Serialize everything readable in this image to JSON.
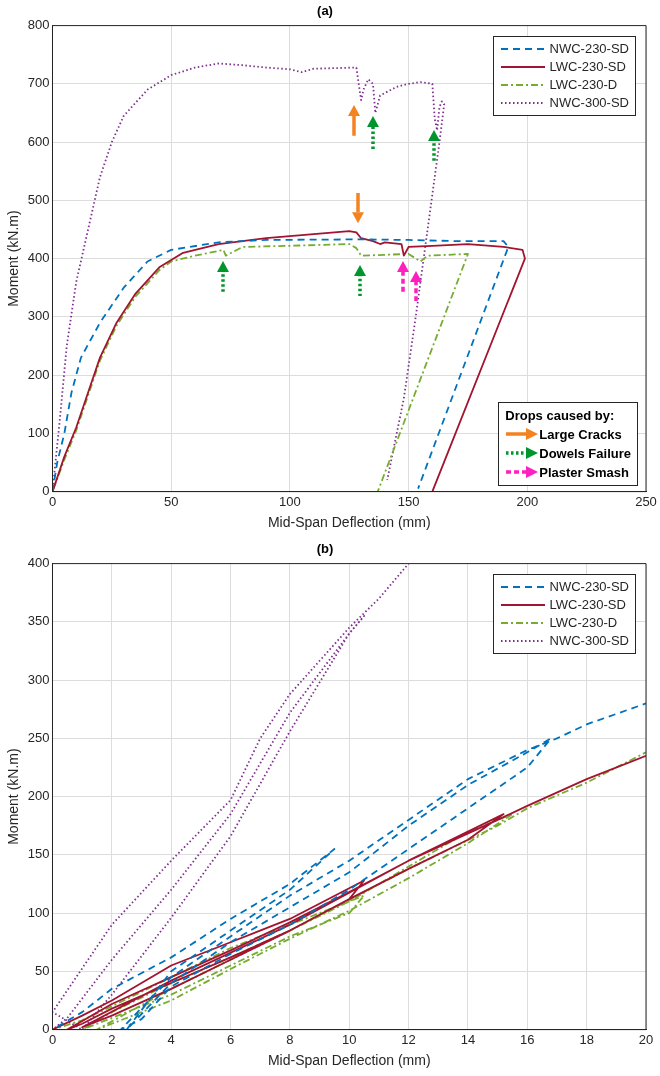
{
  "chart_data": [
    {
      "type": "line",
      "title": "(a)",
      "xlabel": "Mid-Span Deflection (mm)",
      "ylabel": "Moment (kN.m)",
      "xlim": [
        0,
        250
      ],
      "xticks": [
        0,
        50,
        100,
        150,
        200,
        250
      ],
      "ylim": [
        0,
        800
      ],
      "yticks": [
        0,
        100,
        200,
        300,
        400,
        500,
        600,
        700,
        800
      ],
      "grid": true,
      "legend": "top right",
      "annotations": [
        "Drops caused by:",
        "Large Cracks",
        "Dowels Failure",
        "Plaster Smash"
      ],
      "series": [
        {
          "name": "NWC-230-SD",
          "color": "#0072bd",
          "line_style": "dashed",
          "x": [
            0,
            2,
            5,
            8,
            12,
            20,
            30,
            40,
            50,
            70,
            90,
            130,
            150,
            170,
            190,
            192,
            154
          ],
          "values": [
            0,
            50,
            100,
            170,
            230,
            290,
            350,
            395,
            415,
            428,
            432,
            433,
            432,
            430,
            430,
            420,
            5
          ]
        },
        {
          "name": "LWC-230-SD",
          "color": "#a2142f",
          "line_style": "solid",
          "x": [
            0,
            5,
            10,
            15,
            20,
            27,
            35,
            45,
            55,
            70,
            90,
            110,
            125,
            128,
            130,
            135,
            138,
            140,
            147,
            148,
            150,
            160,
            175,
            190,
            198,
            199,
            160
          ],
          "values": [
            0,
            60,
            110,
            170,
            230,
            290,
            340,
            385,
            410,
            425,
            435,
            442,
            447,
            445,
            435,
            430,
            425,
            428,
            425,
            405,
            420,
            422,
            425,
            420,
            415,
            400,
            0
          ]
        },
        {
          "name": "LWC-230-D",
          "color": "#77ac30",
          "line_style": "dashdot",
          "x": [
            0,
            5,
            10,
            15,
            20,
            27,
            35,
            45,
            50,
            60,
            72,
            73,
            80,
            100,
            125,
            128,
            130,
            150,
            155,
            158,
            175,
            137
          ],
          "values": [
            0,
            55,
            105,
            165,
            225,
            285,
            335,
            380,
            395,
            405,
            415,
            405,
            420,
            422,
            425,
            418,
            405,
            408,
            395,
            405,
            408,
            0
          ]
        },
        {
          "name": "NWC-300-SD",
          "color": "#7e2f8e",
          "line_style": "dotted",
          "x": [
            0,
            3,
            6,
            10,
            15,
            20,
            25,
            30,
            40,
            50,
            60,
            70,
            80,
            90,
            100,
            105,
            110,
            128,
            129,
            130,
            131,
            133,
            135,
            136,
            138,
            145,
            150,
            155,
            160,
            161,
            162,
            163,
            164,
            165,
            163,
            158,
            153,
            148,
            143,
            141
          ],
          "values": [
            0,
            120,
            250,
            360,
            450,
            540,
            600,
            645,
            690,
            715,
            728,
            735,
            732,
            728,
            725,
            720,
            726,
            728,
            700,
            672,
            690,
            708,
            700,
            650,
            680,
            695,
            700,
            703,
            700,
            640,
            620,
            660,
            670,
            665,
            600,
            450,
            300,
            160,
            60,
            20
          ]
        }
      ]
    },
    {
      "type": "line",
      "title": "(b)",
      "xlabel": "Mid-Span Deflection (mm)",
      "ylabel": "Moment (kN.m)",
      "xlim": [
        0,
        20
      ],
      "xticks": [
        0,
        2,
        4,
        6,
        8,
        10,
        12,
        14,
        16,
        18,
        20
      ],
      "ylim": [
        0,
        400
      ],
      "yticks": [
        0,
        50,
        100,
        150,
        200,
        250,
        300,
        350,
        400
      ],
      "grid": true,
      "legend": "top right",
      "series": [
        {
          "name": "NWC-230-SD",
          "color": "#0072bd",
          "line_style": "dashed",
          "x": [
            0,
            1,
            2,
            4,
            6,
            8,
            9.5,
            8,
            6,
            4,
            2.5,
            4,
            6,
            8,
            10,
            12,
            14,
            16,
            16.8,
            16,
            14,
            12,
            10,
            8,
            6,
            4,
            3,
            2.3,
            4,
            6,
            8,
            10,
            12,
            14,
            16,
            17,
            18,
            20
          ],
          "values": [
            0,
            15,
            35,
            62,
            95,
            125,
            155,
            120,
            85,
            50,
            0,
            40,
            75,
            105,
            135,
            175,
            210,
            238,
            250,
            225,
            190,
            155,
            120,
            90,
            65,
            37,
            9,
            0,
            45,
            80,
            115,
            145,
            180,
            215,
            240,
            250,
            262,
            280
          ]
        },
        {
          "name": "LWC-230-SD",
          "color": "#a2142f",
          "line_style": "solid",
          "x": [
            0,
            1,
            2,
            4,
            6,
            8,
            10.5,
            10,
            8,
            6,
            4,
            2,
            1,
            0.5,
            2,
            4,
            6,
            8,
            10,
            12,
            14,
            15.2,
            14,
            12,
            10,
            8,
            6,
            4,
            2,
            1,
            4,
            8,
            12,
            15,
            16,
            18,
            20
          ],
          "values": [
            0,
            12,
            25,
            55,
            75,
            95,
            128,
            112,
            85,
            62,
            40,
            18,
            5,
            0,
            22,
            45,
            68,
            92,
            118,
            145,
            170,
            185,
            163,
            138,
            112,
            85,
            60,
            35,
            12,
            2,
            42,
            90,
            145,
            180,
            192,
            215,
            235
          ]
        },
        {
          "name": "LWC-230-D",
          "color": "#77ac30",
          "line_style": "dashdot",
          "x": [
            0,
            1,
            2,
            4,
            6,
            8,
            10.5,
            10,
            8,
            6,
            4,
            2,
            1,
            2,
            4,
            6,
            8,
            10,
            12,
            14,
            15.5,
            14,
            12,
            10,
            8,
            6,
            4,
            2,
            1.5,
            4,
            8,
            12,
            15,
            16,
            18,
            20
          ],
          "values": [
            0,
            8,
            20,
            45,
            70,
            90,
            115,
            100,
            80,
            55,
            30,
            10,
            0,
            15,
            40,
            62,
            85,
            110,
            140,
            170,
            185,
            160,
            130,
            102,
            78,
            52,
            25,
            5,
            0,
            35,
            85,
            138,
            175,
            190,
            212,
            238
          ]
        },
        {
          "name": "NWC-300-SD",
          "color": "#7e2f8e",
          "line_style": "dotted",
          "x": [
            0,
            0.5,
            2,
            4,
            6,
            8,
            10,
            10.5,
            10,
            8,
            6,
            4,
            2,
            1,
            0,
            2,
            4,
            6,
            7,
            8,
            10,
            11,
            12
          ],
          "values": [
            0,
            10,
            60,
            120,
            185,
            272,
            340,
            355,
            340,
            256,
            166,
            96,
            30,
            0,
            15,
            90,
            145,
            197,
            250,
            288,
            345,
            370,
            400
          ]
        }
      ]
    }
  ]
}
